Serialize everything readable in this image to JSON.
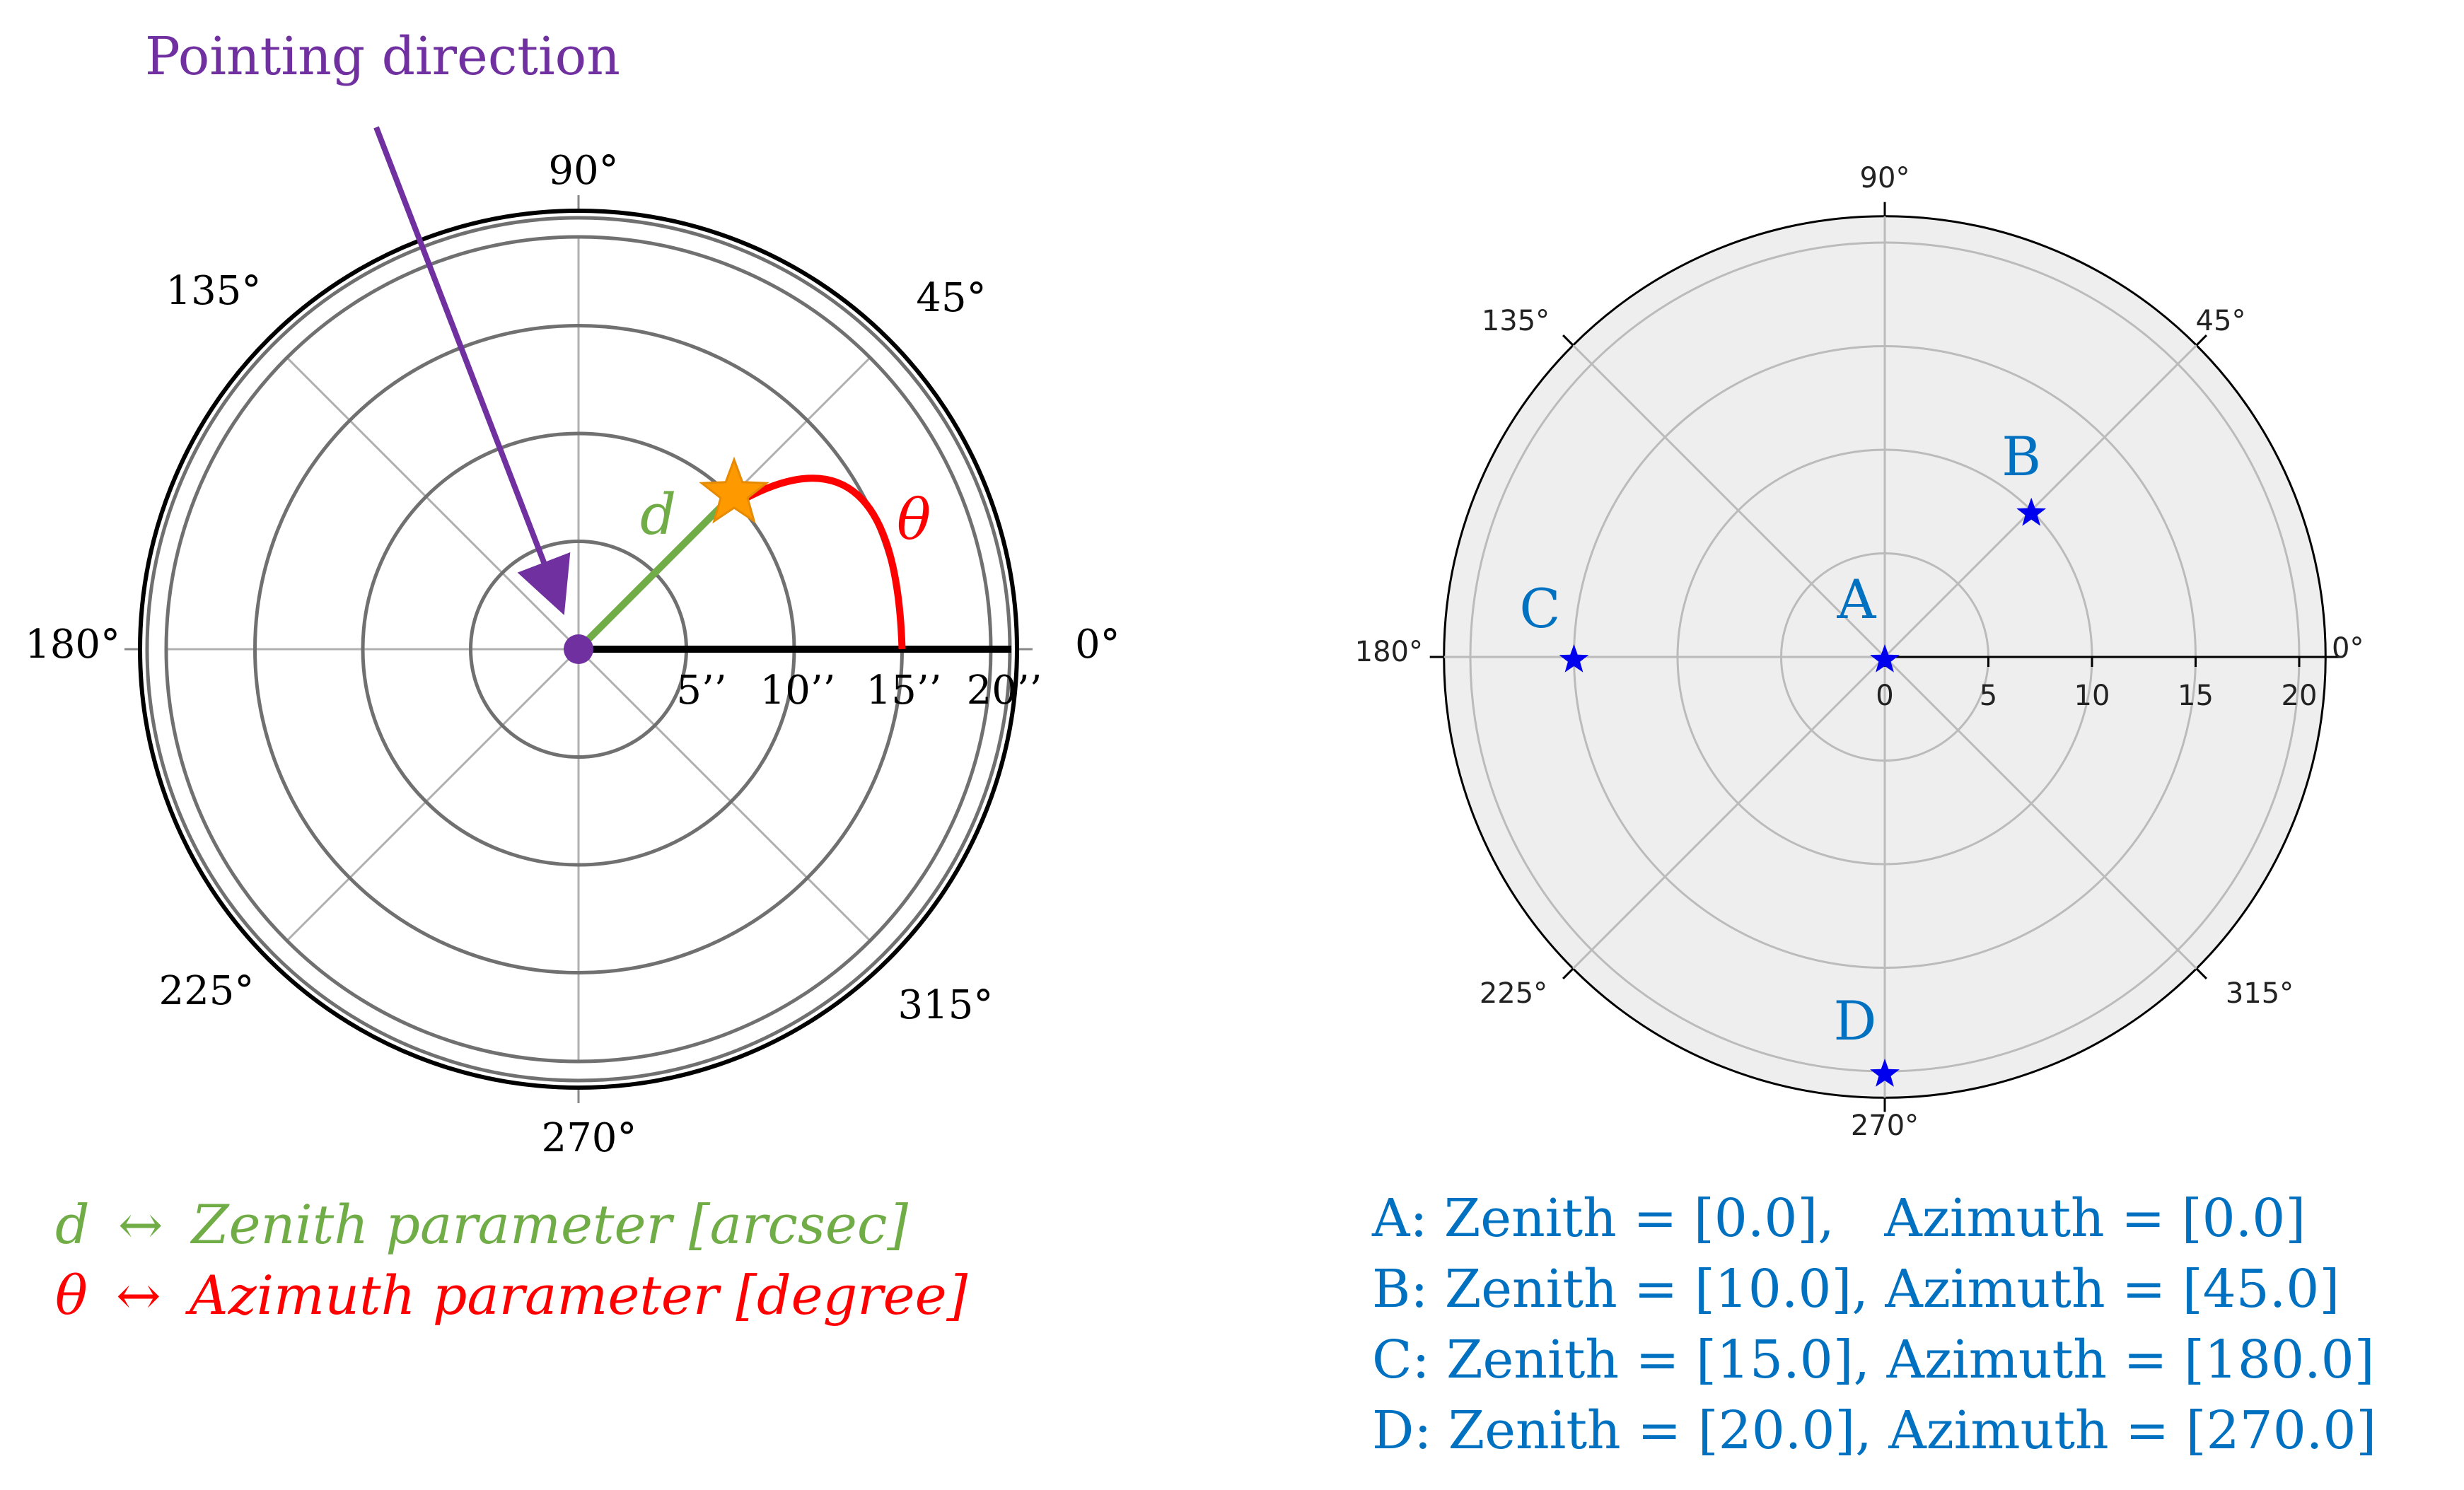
{
  "left_diagram": {
    "pointing_label": "Pointing direction",
    "angle_labels": [
      "0°",
      "45°",
      "90°",
      "135°",
      "180°",
      "225°",
      "270°",
      "315°"
    ],
    "radius_labels": [
      "5’’",
      "10’’",
      "15’’",
      "20’’"
    ],
    "d_symbol": "d",
    "theta_symbol": "θ",
    "star_position": {
      "zenith_arcsec": 10.0,
      "azimuth_deg": 45.0
    },
    "legend": {
      "d_line": {
        "symbol": "d",
        "arrow": "↔",
        "text": "Zenith parameter [arcsec]"
      },
      "theta_line": {
        "symbol": "θ",
        "arrow": "↔",
        "text": "Azimuth parameter [degree]"
      }
    },
    "colors": {
      "pointing": "#7030a0",
      "zenith": "#70ad47",
      "azimuth": "#ff0000",
      "star_fill": "#ff9900"
    }
  },
  "right_diagram": {
    "angle_labels": [
      "0°",
      "45°",
      "90°",
      "135°",
      "180°",
      "225°",
      "270°",
      "315°"
    ],
    "radial_ticks": [
      "0",
      "5",
      "10",
      "15",
      "20"
    ],
    "points": [
      {
        "label": "A",
        "zenith": 0.0,
        "azimuth": 0.0
      },
      {
        "label": "B",
        "zenith": 10.0,
        "azimuth": 45.0
      },
      {
        "label": "C",
        "zenith": 15.0,
        "azimuth": 180.0
      },
      {
        "label": "D",
        "zenith": 20.0,
        "azimuth": 270.0
      }
    ],
    "legend_lines": [
      "A: Zenith = [0.0],   Azimuth = [0.0]",
      "B: Zenith = [10.0], Azimuth = [45.0]",
      "C: Zenith = [15.0], Azimuth = [180.0]",
      "D: Zenith = [20.0], Azimuth = [270.0]"
    ],
    "colors": {
      "text": "#0070c0",
      "marker": "#0000ee",
      "face": "#eeeeee"
    }
  }
}
